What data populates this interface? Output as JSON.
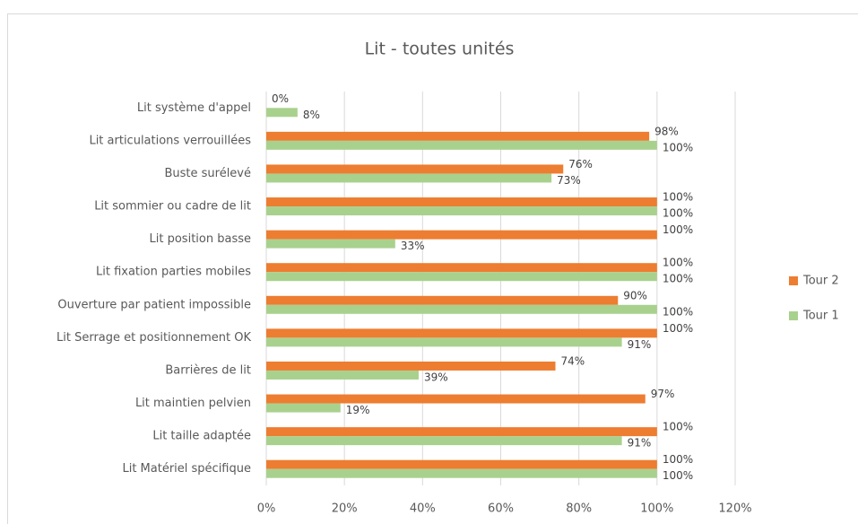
{
  "chart_data": {
    "type": "hbar",
    "title": "Lit - toutes unités",
    "categories": [
      "Lit système d'appel",
      "Lit articulations verrouillées",
      "Buste surélevé",
      "Lit sommier ou cadre de lit",
      "Lit position basse",
      "Lit fixation parties mobiles",
      "Ouverture par patient impossible",
      "Lit Serrage et positionnement OK",
      "Barrières de lit",
      "Lit maintien pelvien",
      "Lit taille adaptée",
      "Lit Matériel spécifique"
    ],
    "series": [
      {
        "name": "Tour 2",
        "color": "#ed7d31",
        "values": [
          0,
          98,
          76,
          100,
          100,
          100,
          90,
          100,
          74,
          97,
          100,
          100
        ],
        "value_labels": [
          "0%",
          "98%",
          "76%",
          "100%",
          "100%",
          "100%",
          "90%",
          "100%",
          "74%",
          "97%",
          "100%",
          "100%"
        ]
      },
      {
        "name": "Tour 1",
        "color": "#a9d18e",
        "values": [
          8,
          100,
          73,
          100,
          33,
          100,
          100,
          91,
          39,
          19,
          91,
          100
        ],
        "value_labels": [
          "8%",
          "100%",
          "73%",
          "100%",
          "33%",
          "100%",
          "100%",
          "91%",
          "39%",
          "19%",
          "91%",
          "100%"
        ]
      }
    ],
    "xlim": [
      0,
      120
    ],
    "xticks": [
      {
        "value": 0,
        "label": "0%"
      },
      {
        "value": 20,
        "label": "20%"
      },
      {
        "value": 40,
        "label": "40%"
      },
      {
        "value": 60,
        "label": "60%"
      },
      {
        "value": 80,
        "label": "80%"
      },
      {
        "value": 100,
        "label": "100%"
      },
      {
        "value": 120,
        "label": "120%"
      }
    ],
    "grid": true,
    "legend": "right"
  }
}
